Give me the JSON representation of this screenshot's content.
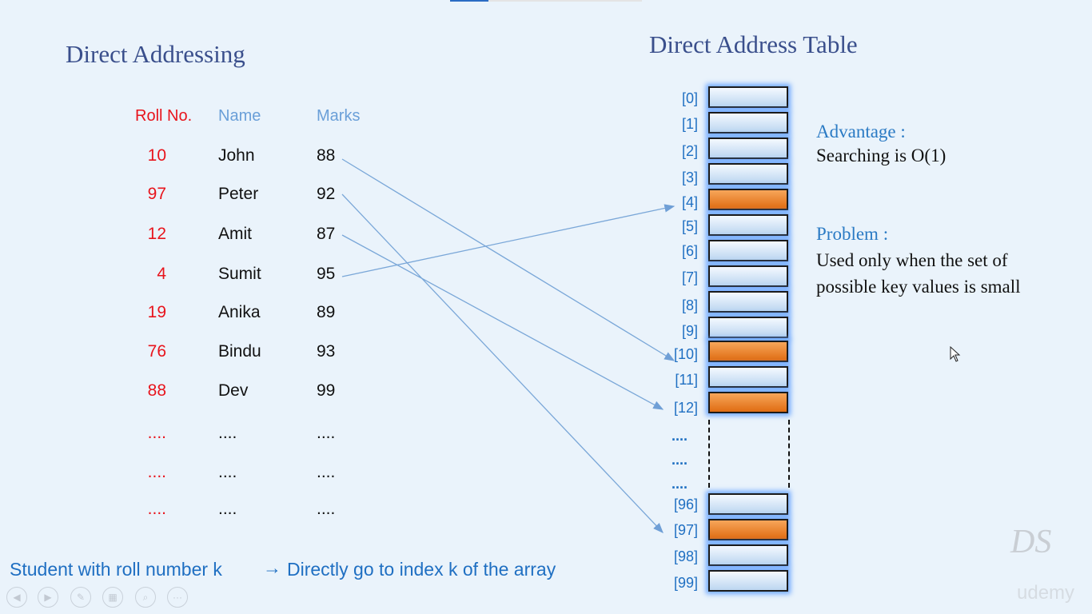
{
  "left_title": "Direct Addressing",
  "right_title": "Direct Address Table",
  "headers": {
    "roll": "Roll No.",
    "name": "Name",
    "marks": "Marks"
  },
  "rows": [
    {
      "roll": "10",
      "name": "John",
      "marks": "88"
    },
    {
      "roll": "97",
      "name": "Peter",
      "marks": "92"
    },
    {
      "roll": "12",
      "name": "Amit",
      "marks": "87"
    },
    {
      "roll": "4",
      "name": "Sumit",
      "marks": "95"
    },
    {
      "roll": "19",
      "name": "Anika",
      "marks": "89"
    },
    {
      "roll": "76",
      "name": "Bindu",
      "marks": "93"
    },
    {
      "roll": "88",
      "name": "Dev",
      "marks": "99"
    },
    {
      "roll": "....",
      "name": "....",
      "marks": "...."
    },
    {
      "roll": "....",
      "name": "....",
      "marks": "...."
    },
    {
      "roll": "....",
      "name": "....",
      "marks": "...."
    }
  ],
  "table_indices": [
    "[0]",
    "[1]",
    "[2]",
    "[3]",
    "[4]",
    "[5]",
    "[6]",
    "[7]",
    "[8]",
    "[9]",
    "[10]",
    "[11]",
    "[12]",
    "....",
    "....",
    "....",
    "[96]",
    "[97]",
    "[98]",
    "[99]"
  ],
  "filled_indices": [
    4,
    10,
    12,
    97
  ],
  "mappings": [
    {
      "from_roll": "10",
      "to_index": "[10]"
    },
    {
      "from_roll": "97",
      "to_index": "[97]"
    },
    {
      "from_roll": "12",
      "to_index": "[12]"
    },
    {
      "from_roll": "4",
      "to_index": "[4]"
    }
  ],
  "advantage": {
    "heading": "Advantage :",
    "text": "Searching is O(1)"
  },
  "problem": {
    "heading": "Problem :",
    "line1": "Used only when the set of",
    "line2": "possible key values is small"
  },
  "footer": {
    "left": "Student with roll number k",
    "arrow": "→",
    "right": "Directly go to index k of the array"
  },
  "watermark": {
    "logo": "DS",
    "brand": "udemy"
  },
  "player_controls": [
    "previous-icon",
    "next-icon",
    "pen-icon",
    "slides-icon",
    "zoom-icon",
    "more-icon"
  ],
  "colors": {
    "title": "#3a4f8c",
    "roll": "#e8141c",
    "header_blue": "#6a9fd8",
    "index_blue": "#1f6fc2",
    "filled_slot": "#ee8a2e",
    "empty_slot": "#cfe2f6",
    "arrow": "#7aa7d8"
  }
}
